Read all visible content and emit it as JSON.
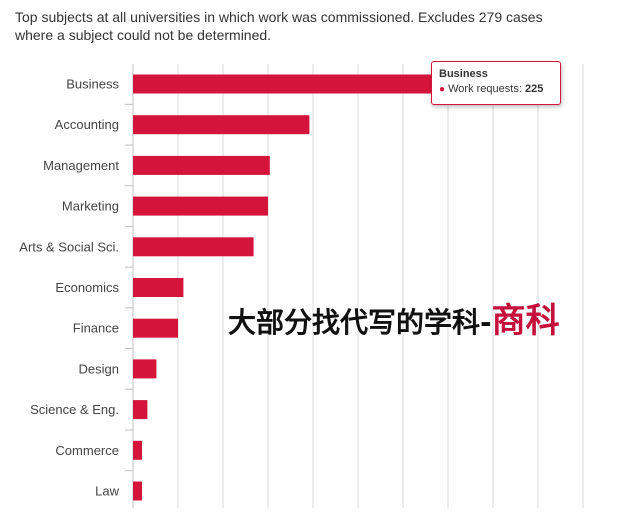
{
  "subtitle": "Top subjects at all universities in which work was commissioned. Excludes 279 cases where a subject could not be determined.",
  "chart_data": {
    "type": "bar",
    "orientation": "horizontal",
    "categories": [
      "Business",
      "Accounting",
      "Management",
      "Marketing",
      "Arts & Social Sci.",
      "Economics",
      "Finance",
      "Design",
      "Science & Eng.",
      "Commerce",
      "Law"
    ],
    "values": [
      225,
      98,
      76,
      75,
      67,
      28,
      25,
      13,
      8,
      5,
      5
    ],
    "xlim": [
      0,
      250
    ],
    "grid": true,
    "bar_color": "#d5143c",
    "tooltip": {
      "title": "Business",
      "series_name": "Work requests:",
      "value": "225"
    }
  },
  "overlay_text": {
    "black": "大部分找代写的学科-",
    "red": "商科"
  }
}
